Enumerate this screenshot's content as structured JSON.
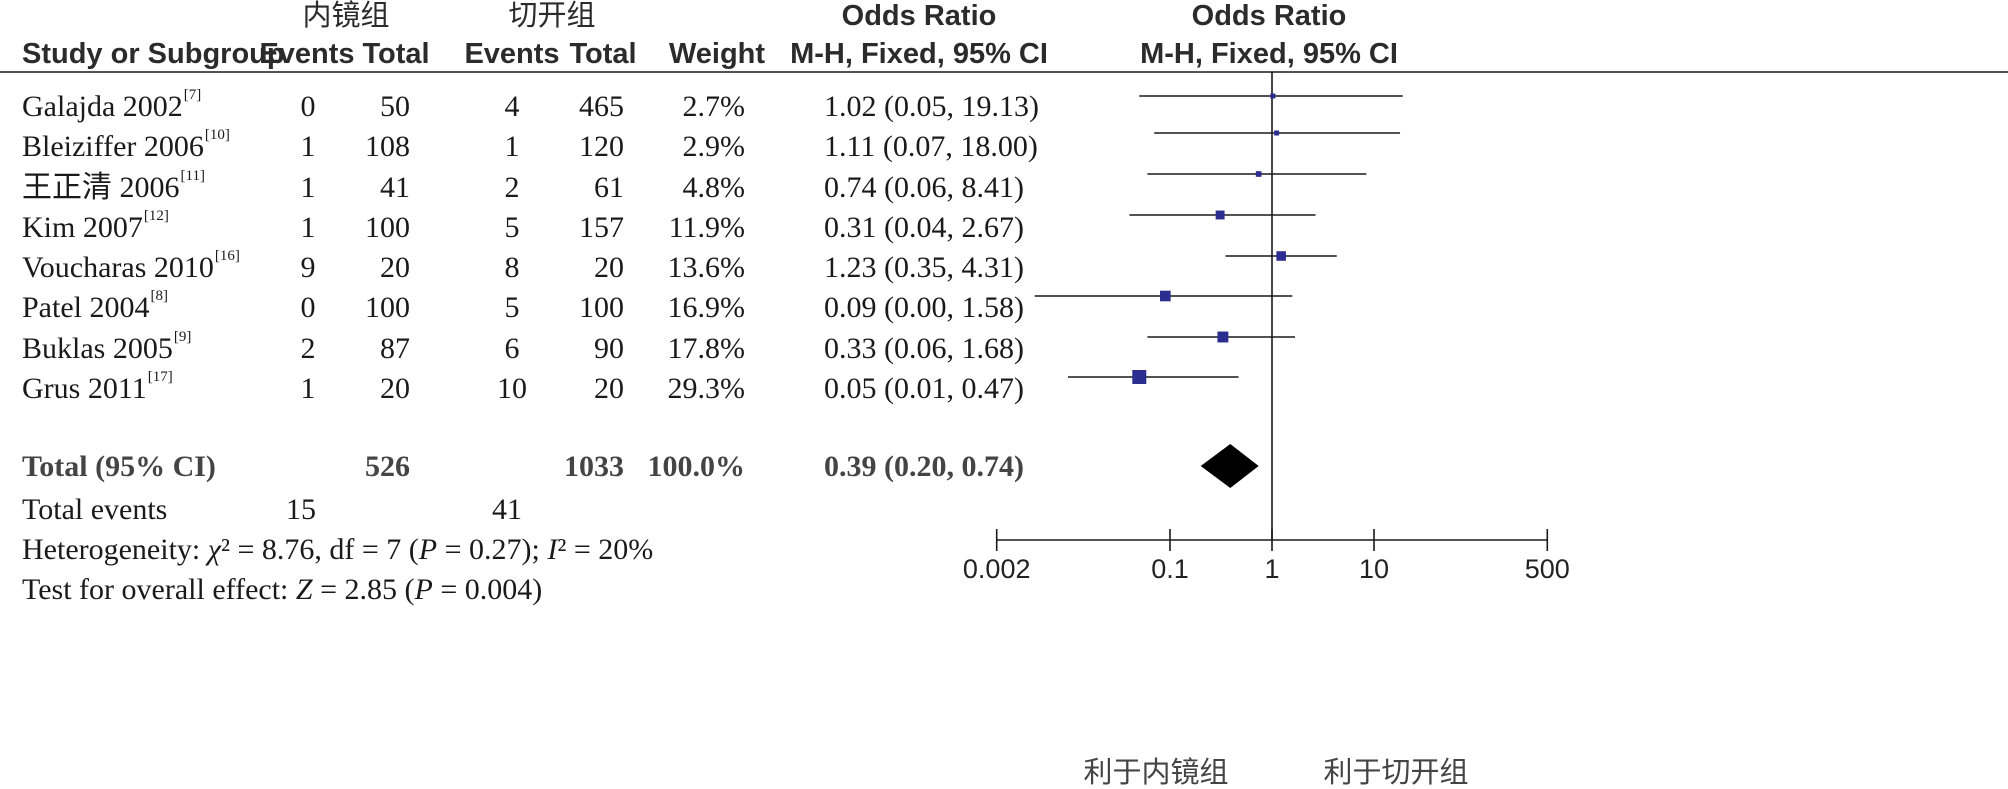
{
  "headers": {
    "group1": "内镜组",
    "group2": "切开组",
    "or_top_table": "Odds Ratio",
    "or_top_plot": "Odds Ratio",
    "study": "Study or Subgroup",
    "events1": "Events",
    "total1": "Total",
    "events2": "Events",
    "total2": "Total",
    "weight": "Weight",
    "method_table": "M-H, Fixed, 95% CI",
    "method_plot": "M-H, Fixed, 95% CI"
  },
  "studies": [
    {
      "name": "Galajda 2002",
      "ref": "[7]",
      "e1": "0",
      "n1": "50",
      "e2": "4",
      "n2": "465",
      "weight": "2.7%",
      "ci": "1.02 (0.05, 19.13)"
    },
    {
      "name": "Bleiziffer 2006",
      "ref": "[10]",
      "e1": "1",
      "n1": "108",
      "e2": "1",
      "n2": "120",
      "weight": "2.9%",
      "ci": "1.11 (0.07, 18.00)"
    },
    {
      "name": "王正清 2006",
      "ref": "[11]",
      "e1": "1",
      "n1": "41",
      "e2": "2",
      "n2": "61",
      "weight": "4.8%",
      "ci": "0.74 (0.06, 8.41)"
    },
    {
      "name": "Kim 2007",
      "ref": "[12]",
      "e1": "1",
      "n1": "100",
      "e2": "5",
      "n2": "157",
      "weight": "11.9%",
      "ci": "0.31 (0.04, 2.67)"
    },
    {
      "name": "Voucharas 2010",
      "ref": "[16]",
      "e1": "9",
      "n1": "20",
      "e2": "8",
      "n2": "20",
      "weight": "13.6%",
      "ci": "1.23 (0.35, 4.31)"
    },
    {
      "name": "Patel 2004",
      "ref": "[8]",
      "e1": "0",
      "n1": "100",
      "e2": "5",
      "n2": "100",
      "weight": "16.9%",
      "ci": "0.09 (0.00, 1.58)"
    },
    {
      "name": "Buklas 2005",
      "ref": "[9]",
      "e1": "2",
      "n1": "87",
      "e2": "6",
      "n2": "90",
      "weight": "17.8%",
      "ci": "0.33 (0.06, 1.68)"
    },
    {
      "name": "Grus 2011",
      "ref": "[17]",
      "e1": "1",
      "n1": "20",
      "e2": "10",
      "n2": "20",
      "weight": "29.3%",
      "ci": "0.05 (0.01, 0.47)"
    }
  ],
  "total": {
    "label": "Total (95% CI)",
    "n1": "526",
    "n2": "1033",
    "weight": "100.0%",
    "ci": "0.39 (0.20, 0.74)"
  },
  "total_events": {
    "label": "Total events",
    "e1": "15",
    "e2": "41"
  },
  "heterogeneity": {
    "prefix": "Heterogeneity: ",
    "chi_sym": "χ",
    "chi_rest": "² = 8.76, df = 7 (",
    "p": "P",
    "p_rest": " = 0.27); ",
    "i_sym": "I",
    "i_rest": "² = 20%"
  },
  "overall": {
    "prefix": "Test for overall effect: ",
    "z": "Z",
    "z_rest": " = 2.85 (",
    "p": "P",
    "p_rest": " = 0.004)"
  },
  "axis": {
    "labels": [
      "利于内镜组",
      "利于切开组"
    ]
  },
  "colors": {
    "square": "#2b2e8f",
    "diamond": "#000000",
    "line": "#1a1a1a"
  },
  "chart_data": {
    "type": "forest",
    "scale": "log",
    "xlim": [
      0.002,
      500
    ],
    "ticks": [
      0.002,
      0.1,
      1,
      10,
      500
    ],
    "tick_labels": [
      "0.002",
      "0.1",
      "1",
      "10",
      "500"
    ],
    "null_line": 1,
    "studies": [
      {
        "or": 1.02,
        "lo": 0.05,
        "hi": 19.13,
        "weight": 2.7
      },
      {
        "or": 1.11,
        "lo": 0.07,
        "hi": 18.0,
        "weight": 2.9
      },
      {
        "or": 0.74,
        "lo": 0.06,
        "hi": 8.41,
        "weight": 4.8
      },
      {
        "or": 0.31,
        "lo": 0.04,
        "hi": 2.67,
        "weight": 11.9
      },
      {
        "or": 1.23,
        "lo": 0.35,
        "hi": 4.31,
        "weight": 13.6
      },
      {
        "or": 0.09,
        "lo": 0.0,
        "hi": 1.58,
        "weight": 16.9
      },
      {
        "or": 0.33,
        "lo": 0.06,
        "hi": 1.68,
        "weight": 17.8
      },
      {
        "or": 0.05,
        "lo": 0.01,
        "hi": 0.47,
        "weight": 29.3
      }
    ],
    "total": {
      "or": 0.39,
      "lo": 0.2,
      "hi": 0.74
    }
  }
}
